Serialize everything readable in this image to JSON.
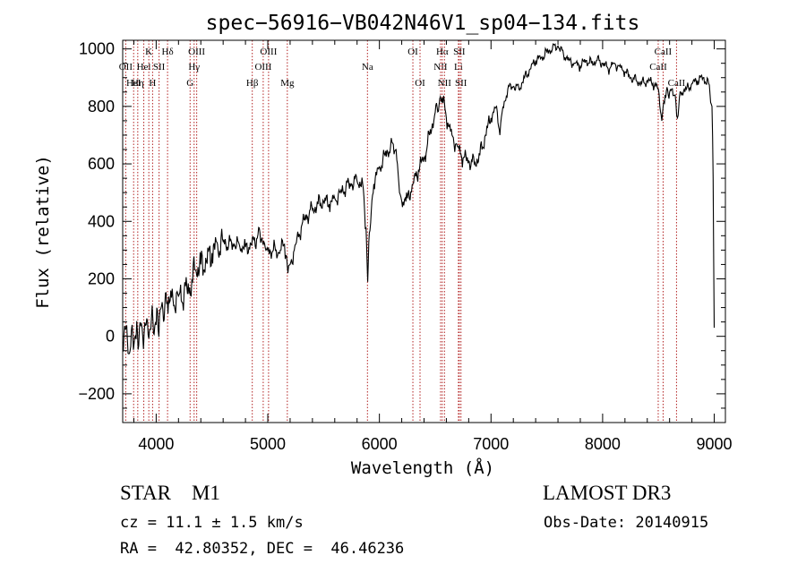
{
  "chart_data": {
    "type": "line",
    "title": "spec−56916−VB042N46V1_sp04−134.fits",
    "xlabel": "Wavelength (Å)",
    "ylabel": "Flux (relative)",
    "xlim": [
      3700,
      9100
    ],
    "ylim": [
      -300,
      1030
    ],
    "xticks": [
      4000,
      5000,
      6000,
      7000,
      8000,
      9000
    ],
    "xtick_labels": [
      "4000",
      "5000",
      "6000",
      "7000",
      "8000",
      "9000"
    ],
    "yticks": [
      -200,
      0,
      200,
      400,
      600,
      800,
      1000
    ],
    "ytick_labels": [
      "−200",
      "0",
      "200",
      "400",
      "600",
      "800",
      "1000"
    ],
    "line_color": "#000000",
    "marker_color": "#b22222",
    "series": [
      {
        "name": "flux",
        "points": [
          [
            3700,
            -20
          ],
          [
            3730,
            30
          ],
          [
            3760,
            -60
          ],
          [
            3790,
            10
          ],
          [
            3820,
            -10
          ],
          [
            3850,
            30
          ],
          [
            3880,
            0
          ],
          [
            3910,
            40
          ],
          [
            3940,
            20
          ],
          [
            3970,
            60
          ],
          [
            4000,
            40
          ],
          [
            4030,
            70
          ],
          [
            4060,
            90
          ],
          [
            4100,
            120
          ],
          [
            4150,
            130
          ],
          [
            4200,
            140
          ],
          [
            4250,
            150
          ],
          [
            4300,
            170
          ],
          [
            4320,
            200
          ],
          [
            4350,
            230
          ],
          [
            4400,
            250
          ],
          [
            4450,
            260
          ],
          [
            4500,
            290
          ],
          [
            4550,
            320
          ],
          [
            4600,
            330
          ],
          [
            4650,
            320
          ],
          [
            4700,
            320
          ],
          [
            4750,
            310
          ],
          [
            4800,
            310
          ],
          [
            4850,
            320
          ],
          [
            4900,
            340
          ],
          [
            4930,
            360
          ],
          [
            4960,
            320
          ],
          [
            5000,
            300
          ],
          [
            5050,
            300
          ],
          [
            5100,
            290
          ],
          [
            5150,
            320
          ],
          [
            5180,
            220
          ],
          [
            5200,
            250
          ],
          [
            5250,
            320
          ],
          [
            5300,
            380
          ],
          [
            5350,
            420
          ],
          [
            5400,
            440
          ],
          [
            5450,
            460
          ],
          [
            5500,
            470
          ],
          [
            5550,
            460
          ],
          [
            5600,
            480
          ],
          [
            5650,
            500
          ],
          [
            5700,
            520
          ],
          [
            5750,
            530
          ],
          [
            5800,
            540
          ],
          [
            5850,
            530
          ],
          [
            5880,
            380
          ],
          [
            5895,
            190
          ],
          [
            5910,
            360
          ],
          [
            5950,
            530
          ],
          [
            6000,
            590
          ],
          [
            6050,
            630
          ],
          [
            6100,
            660
          ],
          [
            6150,
            650
          ],
          [
            6180,
            500
          ],
          [
            6200,
            470
          ],
          [
            6250,
            480
          ],
          [
            6300,
            530
          ],
          [
            6350,
            580
          ],
          [
            6400,
            620
          ],
          [
            6450,
            700
          ],
          [
            6500,
            780
          ],
          [
            6563,
            830
          ],
          [
            6600,
            760
          ],
          [
            6650,
            700
          ],
          [
            6700,
            660
          ],
          [
            6750,
            620
          ],
          [
            6800,
            610
          ],
          [
            6850,
            600
          ],
          [
            6900,
            630
          ],
          [
            6950,
            700
          ],
          [
            7000,
            760
          ],
          [
            7050,
            800
          ],
          [
            7080,
            700
          ],
          [
            7100,
            780
          ],
          [
            7150,
            860
          ],
          [
            7200,
            870
          ],
          [
            7250,
            860
          ],
          [
            7300,
            900
          ],
          [
            7350,
            930
          ],
          [
            7400,
            960
          ],
          [
            7450,
            970
          ],
          [
            7500,
            990
          ],
          [
            7550,
            1000
          ],
          [
            7600,
            1010
          ],
          [
            7650,
            980
          ],
          [
            7700,
            960
          ],
          [
            7750,
            950
          ],
          [
            7800,
            940
          ],
          [
            7850,
            960
          ],
          [
            7900,
            950
          ],
          [
            7950,
            960
          ],
          [
            8000,
            950
          ],
          [
            8050,
            930
          ],
          [
            8100,
            950
          ],
          [
            8150,
            940
          ],
          [
            8200,
            920
          ],
          [
            8250,
            900
          ],
          [
            8300,
            890
          ],
          [
            8350,
            880
          ],
          [
            8400,
            890
          ],
          [
            8450,
            880
          ],
          [
            8500,
            860
          ],
          [
            8530,
            750
          ],
          [
            8560,
            840
          ],
          [
            8600,
            850
          ],
          [
            8650,
            840
          ],
          [
            8670,
            760
          ],
          [
            8700,
            850
          ],
          [
            8750,
            860
          ],
          [
            8800,
            880
          ],
          [
            8850,
            890
          ],
          [
            8900,
            900
          ],
          [
            8950,
            880
          ],
          [
            8980,
            800
          ],
          [
            8990,
            550
          ],
          [
            9000,
            30
          ]
        ]
      }
    ],
    "markers": [
      {
        "x": 3727,
        "label": "OII",
        "row": 1
      },
      {
        "x": 3798,
        "label": "HeI",
        "row": 2
      },
      {
        "x": 3835,
        "label": "Hη",
        "row": 2
      },
      {
        "x": 3889,
        "label": "Hel",
        "row": 1
      },
      {
        "x": 3934,
        "label": "K",
        "row": 0
      },
      {
        "x": 3968,
        "label": "H",
        "row": 2
      },
      {
        "x": 4026,
        "label": "SII",
        "row": 1
      },
      {
        "x": 4102,
        "label": "Hδ",
        "row": 0
      },
      {
        "x": 4304,
        "label": "G",
        "row": 2
      },
      {
        "x": 4340,
        "label": "Hγ",
        "row": 1
      },
      {
        "x": 4363,
        "label": "OIII",
        "row": 0
      },
      {
        "x": 4861,
        "label": "Hβ",
        "row": 2
      },
      {
        "x": 4959,
        "label": "OIII",
        "row": 1
      },
      {
        "x": 5007,
        "label": "OIII",
        "row": 0
      },
      {
        "x": 5175,
        "label": "Mg",
        "row": 2
      },
      {
        "x": 5893,
        "label": "Na",
        "row": 1
      },
      {
        "x": 6300,
        "label": "OI",
        "row": 0
      },
      {
        "x": 6364,
        "label": "OI",
        "row": 2
      },
      {
        "x": 6548,
        "label": "NII",
        "row": 1
      },
      {
        "x": 6563,
        "label": "Hα",
        "row": 0
      },
      {
        "x": 6583,
        "label": "NII",
        "row": 2
      },
      {
        "x": 6708,
        "label": "Li",
        "row": 1
      },
      {
        "x": 6716,
        "label": "SII",
        "row": 0
      },
      {
        "x": 6731,
        "label": "SII",
        "row": 2
      },
      {
        "x": 8498,
        "label": "CaII",
        "row": 1
      },
      {
        "x": 8542,
        "label": "CaII",
        "row": 0
      },
      {
        "x": 8662,
        "label": "CaII",
        "row": 2
      }
    ]
  },
  "info": {
    "class_line": "STAR    M1",
    "survey": "LAMOST DR3",
    "cz": "cz = 11.1 ± 1.5 km/s",
    "obs_date": "Obs-Date: 20140915",
    "coords": "RA =  42.80352, DEC =  46.46236"
  }
}
